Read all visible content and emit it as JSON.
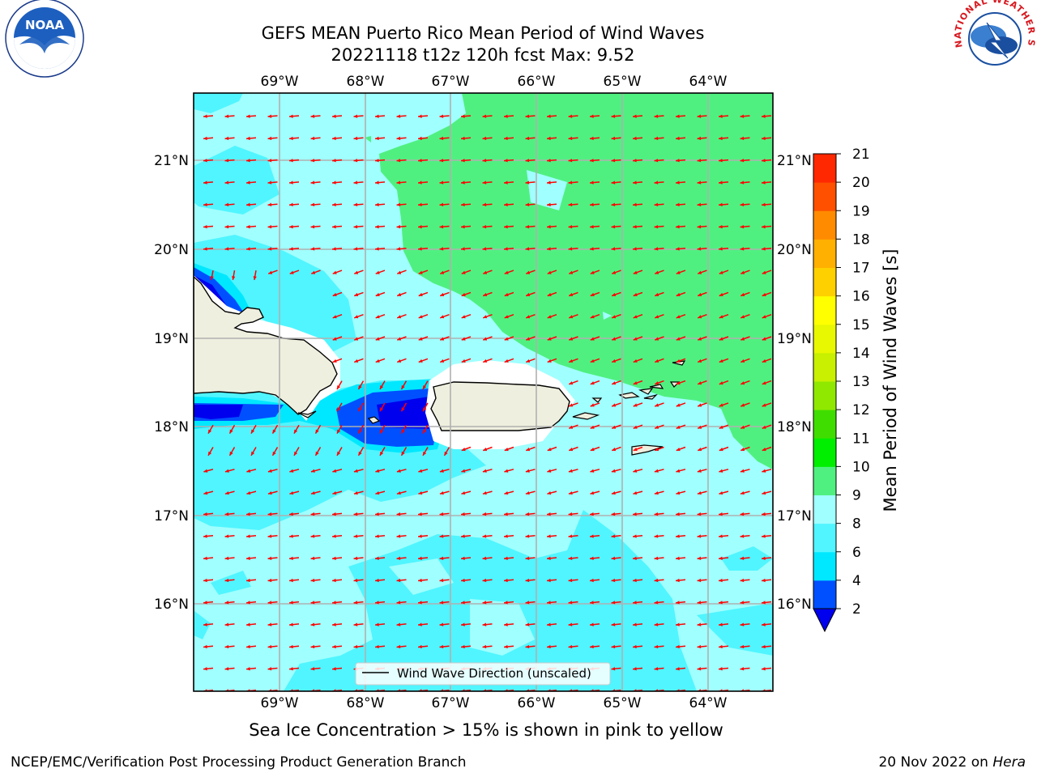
{
  "header": {
    "title_line1": "GEFS MEAN Puerto Rico Mean Period of Wind Waves",
    "title_line2": "20221118 t12z 120h fcst   Max: 9.52"
  },
  "map": {
    "lon_labels": [
      "69°W",
      "68°W",
      "67°W",
      "66°W",
      "65°W",
      "64°W"
    ],
    "lat_labels": [
      "21°N",
      "20°N",
      "19°N",
      "18°N",
      "17°N",
      "16°N"
    ],
    "arrow_color": "#ff0000",
    "legend_label": "Wind Wave Direction (unscaled)"
  },
  "colorbar": {
    "label": "Mean Period of Wind Waves [s]",
    "ticks": [
      "2",
      "4",
      "6",
      "8",
      "9",
      "10",
      "11",
      "12",
      "13",
      "14",
      "15",
      "16",
      "17",
      "18",
      "19",
      "20",
      "21"
    ],
    "colors": [
      "#0050ff",
      "#00e8ff",
      "#50f5ff",
      "#a0ffff",
      "#50f080",
      "#00ee00",
      "#40dd00",
      "#90e800",
      "#c8f000",
      "#e8f800",
      "#ffff00",
      "#ffd000",
      "#ffb000",
      "#ff8c00",
      "#ff5000",
      "#ff2800",
      "#ff0000"
    ],
    "under_color": "#0000ee"
  },
  "logos": {
    "noaa_text": "NOAA",
    "nws_text": "NATIONAL WEATHER SERVICE"
  },
  "subtitle": "Sea Ice Concentration > 15% is shown in pink to yellow",
  "footer": {
    "left": "NCEP/EMC/Verification Post Processing Product Generation Branch",
    "date": "20 Nov 2022 on",
    "machine": "Hera"
  }
}
